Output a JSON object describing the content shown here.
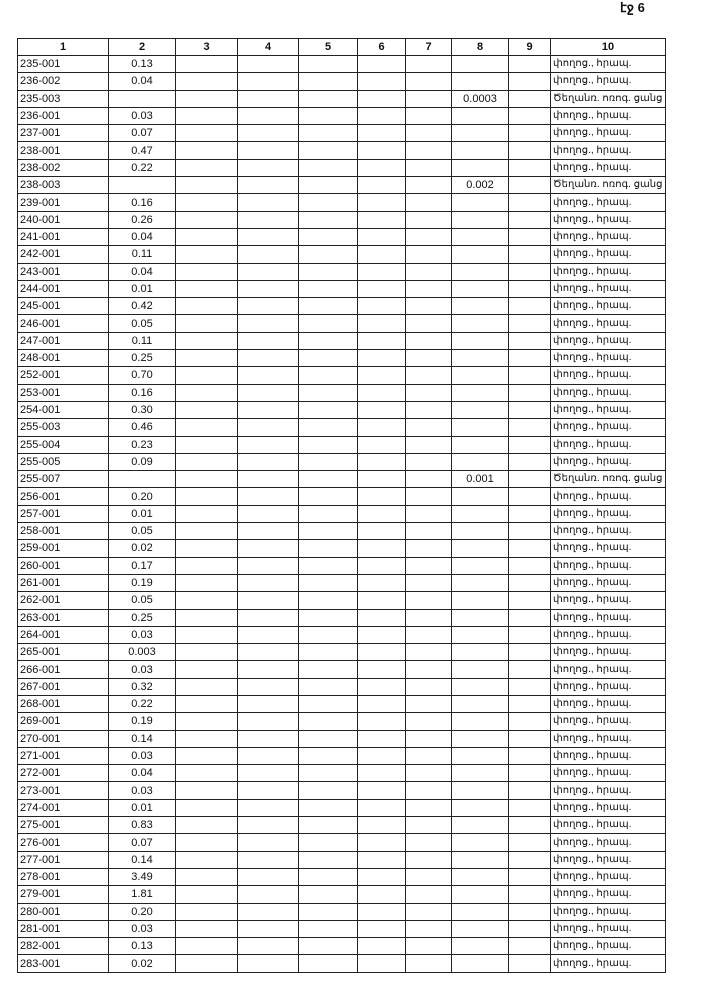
{
  "header": {
    "page_label": "էջ 6"
  },
  "table": {
    "columns": [
      "1",
      "2",
      "3",
      "4",
      "5",
      "6",
      "7",
      "8",
      "9",
      "10"
    ],
    "rows": [
      {
        "col1": "235-001",
        "col2": "0.13",
        "col10": "փողոց., հրապ."
      },
      {
        "col1": "236-002",
        "col2": "0.04",
        "col10": "փողոց., հրապ."
      },
      {
        "col1": "235-003",
        "col8": "0.0003",
        "col10": "Ծեղանռ. ոռոգ. ցանց"
      },
      {
        "col1": "236-001",
        "col2": "0.03",
        "col10": "փողոց., հրապ."
      },
      {
        "col1": "237-001",
        "col2": "0.07",
        "col10": "փողոց., հրապ."
      },
      {
        "col1": "238-001",
        "col2": "0.47",
        "col10": "փողոց., հրապ."
      },
      {
        "col1": "238-002",
        "col2": "0.22",
        "col10": "փողոց., հրապ."
      },
      {
        "col1": "238-003",
        "col8": "0.002",
        "col10": "Ծեղանռ. ոռոգ. ցանց"
      },
      {
        "col1": "239-001",
        "col2": "0.16",
        "col10": "փողոց., հրապ."
      },
      {
        "col1": "240-001",
        "col2": "0.26",
        "col10": "փողոց., հրապ."
      },
      {
        "col1": "241-001",
        "col2": "0.04",
        "col10": "փողոց., հրապ."
      },
      {
        "col1": "242-001",
        "col2": "0.11",
        "col10": "փողոց., հրապ."
      },
      {
        "col1": "243-001",
        "col2": "0.04",
        "col10": "փողոց., հրապ."
      },
      {
        "col1": "244-001",
        "col2": "0.01",
        "col10": "փողոց., հրապ."
      },
      {
        "col1": "245-001",
        "col2": "0.42",
        "col10": "փողոց., հրապ."
      },
      {
        "col1": "246-001",
        "col2": "0.05",
        "col10": "փողոց., հրապ."
      },
      {
        "col1": "247-001",
        "col2": "0.11",
        "col10": "փողոց., հրապ."
      },
      {
        "col1": "248-001",
        "col2": "0.25",
        "col10": "փողոց., հրապ."
      },
      {
        "col1": "252-001",
        "col2": "0.70",
        "col10": "փողոց., հրապ."
      },
      {
        "col1": "253-001",
        "col2": "0.16",
        "col10": "փողոց., հրապ."
      },
      {
        "col1": "254-001",
        "col2": "0.30",
        "col10": "փողոց., հրապ."
      },
      {
        "col1": "255-003",
        "col2": "0.46",
        "col10": "փողոց., հրապ."
      },
      {
        "col1": "255-004",
        "col2": "0.23",
        "col10": "փողոց., հրապ."
      },
      {
        "col1": "255-005",
        "col2": "0.09",
        "col10": "փողոց., հրապ."
      },
      {
        "col1": "255-007",
        "col8": "0.001",
        "col10": "Ծեղանռ. ոռոգ. ցանց"
      },
      {
        "col1": "256-001",
        "col2": "0.20",
        "col10": "փողոց., հրապ."
      },
      {
        "col1": "257-001",
        "col2": "0.01",
        "col10": "փողոց., հրապ."
      },
      {
        "col1": "258-001",
        "col2": "0.05",
        "col10": "փողոց., հրապ."
      },
      {
        "col1": "259-001",
        "col2": "0.02",
        "col10": "փողոց., հրապ."
      },
      {
        "col1": "260-001",
        "col2": "0.17",
        "col10": "փողոց., հրապ."
      },
      {
        "col1": "261-001",
        "col2": "0.19",
        "col10": "փողոց., հրապ."
      },
      {
        "col1": "262-001",
        "col2": "0.05",
        "col10": "փողոց., հրապ."
      },
      {
        "col1": "263-001",
        "col2": "0.25",
        "col10": "փողոց., հրապ."
      },
      {
        "col1": "264-001",
        "col2": "0.03",
        "col10": "փողոց., հրապ."
      },
      {
        "col1": "265-001",
        "col2": "0.003",
        "col10": "փողոց., հրապ."
      },
      {
        "col1": "266-001",
        "col2": "0.03",
        "col10": "փողոց., հրապ."
      },
      {
        "col1": "267-001",
        "col2": "0.32",
        "col10": "փողոց., հրապ."
      },
      {
        "col1": "268-001",
        "col2": "0.22",
        "col10": "փողոց., հրապ."
      },
      {
        "col1": "269-001",
        "col2": "0.19",
        "col10": "փողոց., հրապ."
      },
      {
        "col1": "270-001",
        "col2": "0.14",
        "col10": "փողոց., հրապ."
      },
      {
        "col1": "271-001",
        "col2": "0.03",
        "col10": "փողոց., հրապ."
      },
      {
        "col1": "272-001",
        "col2": "0.04",
        "col10": "փողոց., հրապ."
      },
      {
        "col1": "273-001",
        "col2": "0.03",
        "col10": "փողոց., հրապ."
      },
      {
        "col1": "274-001",
        "col2": "0.01",
        "col10": "փողոց., հրապ."
      },
      {
        "col1": "275-001",
        "col2": "0.83",
        "col10": "փողոց., հրապ."
      },
      {
        "col1": "276-001",
        "col2": "0.07",
        "col10": "փողոց., հրապ."
      },
      {
        "col1": "277-001",
        "col2": "0.14",
        "col10": "փողոց., հրապ."
      },
      {
        "col1": "278-001",
        "col2": "3.49",
        "col10": "փողոց., հրապ."
      },
      {
        "col1": "279-001",
        "col2": "1.81",
        "col10": "փողոց., հրապ."
      },
      {
        "col1": "280-001",
        "col2": "0.20",
        "col10": "փողոց., հրապ."
      },
      {
        "col1": "281-001",
        "col2": "0.03",
        "col10": "փողոց., հրապ."
      },
      {
        "col1": "282-001",
        "col2": "0.13",
        "col10": "փողոց., հրապ."
      },
      {
        "col1": "283-001",
        "col2": "0.02",
        "col10": "փողոց., հրապ."
      }
    ]
  }
}
